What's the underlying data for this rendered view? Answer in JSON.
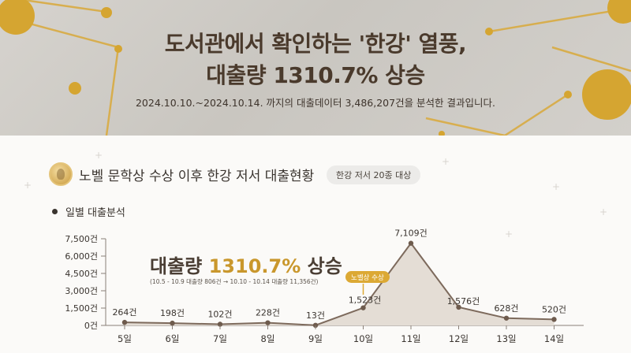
{
  "hero": {
    "title_line1": "도서관에서 확인하는 '한강' 열풍,",
    "title_line2": "대출량 1310.7% 상승",
    "subtitle": "2024.10.10.~2024.10.14. 까지의 대출데이터 3,486,207건을 분석한 결과입니다."
  },
  "section": {
    "title": "노벨 문학상 수상 이후 한강 저서 대출현황",
    "badge": "한강 저서 20종 대상",
    "bullet": "일별 대출분석"
  },
  "headline": {
    "prefix": "대출량 ",
    "highlight": "1310.7%",
    "suffix": " 상승",
    "note": "(10.5 - 10.9 대출량 806건 → 10.10 - 10.14 대출량 11,356건)"
  },
  "callout": "노벨상 수상",
  "colors": {
    "accent": "#c9972c",
    "area": "#e4ddd5",
    "line": "#7d6a5c",
    "badge": "#dca934"
  },
  "chart_data": {
    "type": "area",
    "categories": [
      "5일",
      "6일",
      "7일",
      "8일",
      "9일",
      "10일",
      "11일",
      "12일",
      "13일",
      "14일"
    ],
    "values": [
      264,
      198,
      102,
      228,
      13,
      1523,
      7109,
      1576,
      628,
      520
    ],
    "data_labels": [
      "264건",
      "198건",
      "102건",
      "228건",
      "13건",
      "1,523건",
      "7,109건",
      "1,576건",
      "628건",
      "520건"
    ],
    "y_ticks": [
      0,
      1500,
      3000,
      4500,
      6000,
      7500
    ],
    "y_tick_labels": [
      "0건",
      "1,500건",
      "3,000건",
      "4,500건",
      "6,000건",
      "7,500건"
    ],
    "ylim": [
      0,
      7500
    ],
    "annotation": {
      "category": "10일",
      "text": "노벨상 수상"
    }
  }
}
